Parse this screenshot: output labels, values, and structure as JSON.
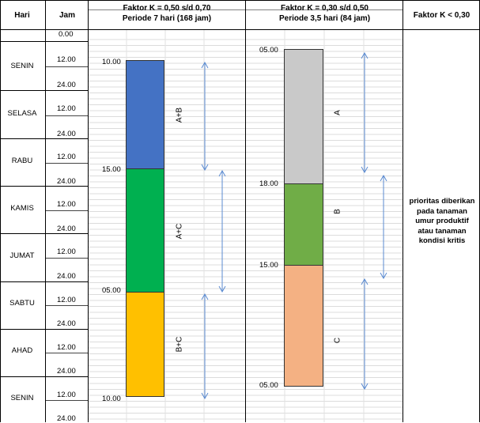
{
  "headers": {
    "hari": "Hari",
    "jam": "Jam",
    "k1_line1": "Faktor K = 0,50 s/d 0,70",
    "k1_line2": "Periode 7 hari (168 jam)",
    "k2_line1": "Faktor K = 0,30 s/d 0,50",
    "k2_line2": "Periode 3,5 hari (84 jam)",
    "k3": "Faktor  K < 0,30"
  },
  "days": [
    "SENIN",
    "SELASA",
    "RABU",
    "KAMIS",
    "JUMAT",
    "SABTU",
    "AHAD",
    "SENIN"
  ],
  "hours": [
    "0.00",
    "12.00",
    "24.00",
    "12.00",
    "24.00",
    "12.00",
    "24.00",
    "12.00",
    "24.00",
    "12.00",
    "24.00",
    "12.00",
    "24.00",
    "12.00",
    "24.00",
    "12.00",
    "24.00"
  ],
  "rotation1": {
    "times": [
      "10.00",
      "15.00",
      "05.00",
      "10.00"
    ],
    "groups": [
      "A+B",
      "A+C",
      "B+C"
    ],
    "colors": [
      "#4472c4",
      "#00b050",
      "#ffc000"
    ]
  },
  "rotation2": {
    "times": [
      "05.00",
      "18.00",
      "15.00",
      "05.00"
    ],
    "groups": [
      "A",
      "B",
      "C"
    ],
    "colors": [
      "#c9c9c9",
      "#70ad47",
      "#f4b183"
    ]
  },
  "note": [
    "prioritas diberikan",
    "pada tanaman",
    "umur produktif",
    "atau tanaman",
    "kondisi kritis"
  ]
}
